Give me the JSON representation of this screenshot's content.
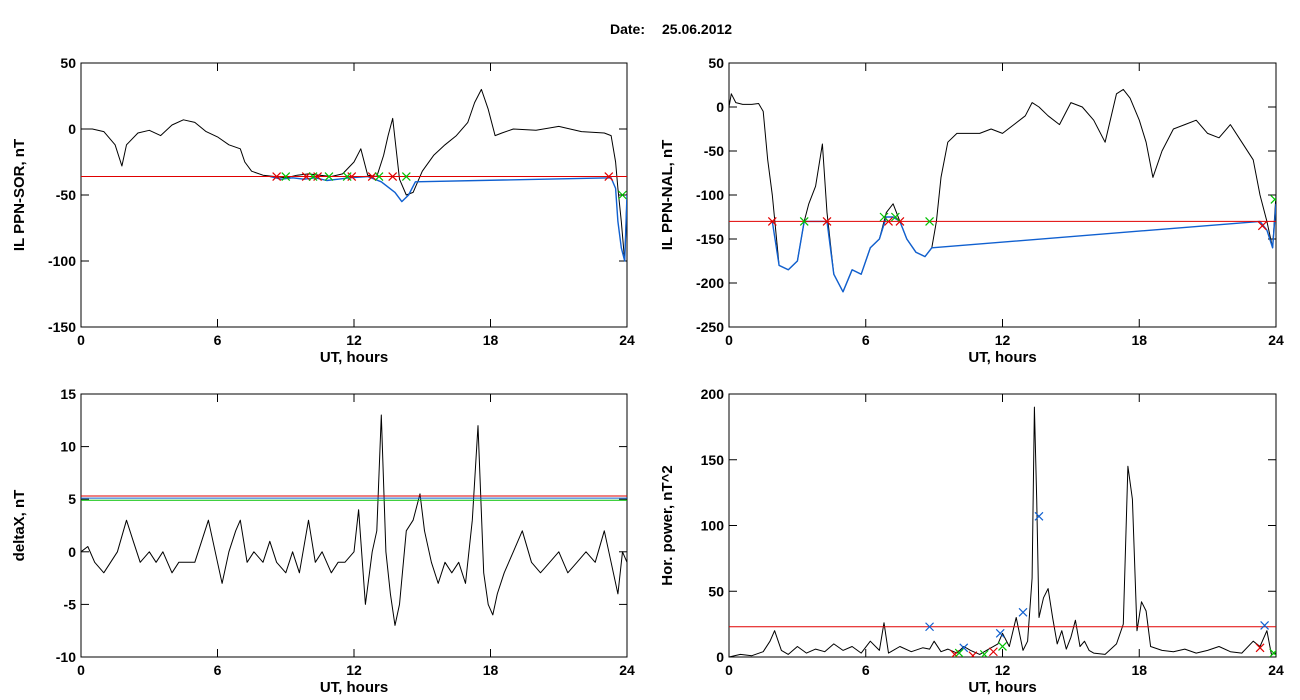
{
  "header": {
    "date_label": "Date:",
    "date_value": "25.06.2012"
  },
  "chart_data": [
    {
      "type": "line",
      "xlabel": "UT, hours",
      "ylabel": "IL PPN-SOR, nT",
      "xlim": [
        0,
        24
      ],
      "ylim": [
        -150,
        50
      ],
      "xticks": [
        0,
        6,
        12,
        18,
        24
      ],
      "yticks": [
        -150,
        -100,
        -50,
        0,
        50
      ],
      "threshold": {
        "value": -36,
        "color": "#e00000"
      },
      "series": [
        {
          "color": "#000000",
          "x": [
            0,
            0.5,
            1,
            1.5,
            1.8,
            2,
            2.5,
            3,
            3.5,
            4,
            4.5,
            5,
            5.5,
            6,
            6.5,
            7,
            7.2,
            7.5,
            8,
            8.5,
            9,
            9.5,
            10,
            10.5,
            11,
            11.5,
            12,
            12.3,
            12.6,
            13,
            13.3,
            13.5,
            13.7,
            14,
            14.3,
            14.6,
            15,
            15.5,
            16,
            16.5,
            17,
            17.3,
            17.6,
            17.9,
            18.2,
            18.5,
            19,
            20,
            21,
            22,
            23,
            23.3,
            23.5,
            23.6,
            23.75,
            23.9,
            24
          ],
          "y": [
            0,
            0,
            -2,
            -12,
            -28,
            -12,
            -3,
            -1,
            -5,
            3,
            7,
            5,
            -2,
            -6,
            -12,
            -15,
            -25,
            -32,
            -35,
            -36,
            -37,
            -35,
            -34,
            -35,
            -36,
            -34,
            -25,
            -15,
            -35,
            -36,
            -20,
            -5,
            8,
            -38,
            -50,
            -48,
            -32,
            -20,
            -12,
            -5,
            5,
            20,
            30,
            15,
            -5,
            -3,
            0,
            -1,
            2,
            -2,
            -3,
            -5,
            -25,
            -45,
            -70,
            -100,
            -50
          ]
        },
        {
          "color": "#1060d0",
          "x": [
            8.3,
            8.8,
            9.3,
            9.8,
            10.3,
            10.8,
            11.3,
            11.8,
            12.6,
            13.2,
            13.8,
            14.1,
            14.4,
            14.7,
            23.3,
            23.5,
            23.6,
            23.75,
            23.9,
            24
          ],
          "y": [
            -36,
            -38,
            -37,
            -38,
            -37,
            -39,
            -38,
            -37,
            -36,
            -40,
            -48,
            -55,
            -50,
            -40,
            -37,
            -45,
            -70,
            -90,
            -100,
            -50
          ]
        }
      ],
      "markers": [
        {
          "color": "#e00000",
          "x": [
            8.6,
            9.9,
            10.4,
            11.9,
            12.8,
            13.7,
            23.2
          ],
          "y": [
            -36,
            -36,
            -36,
            -36,
            -36,
            -36,
            -36
          ]
        },
        {
          "color": "#00c000",
          "x": [
            9.0,
            10.2,
            10.9,
            11.7,
            13.1,
            14.3,
            23.8
          ],
          "y": [
            -36,
            -36,
            -36,
            -36,
            -36,
            -36,
            -50
          ]
        }
      ]
    },
    {
      "type": "line",
      "xlabel": "UT, hours",
      "ylabel": "IL PPN-NAL, nT",
      "xlim": [
        0,
        24
      ],
      "ylim": [
        -250,
        50
      ],
      "xticks": [
        0,
        6,
        12,
        18,
        24
      ],
      "yticks": [
        -250,
        -200,
        -150,
        -100,
        -50,
        0,
        50
      ],
      "threshold": {
        "value": -130,
        "color": "#e00000"
      },
      "series": [
        {
          "color": "#000000",
          "x": [
            0,
            0.1,
            0.3,
            0.6,
            1,
            1.3,
            1.5,
            1.7,
            1.9,
            2.2,
            2.6,
            3,
            3.3,
            3.5,
            3.8,
            4.1,
            4.3,
            4.6,
            5,
            5.4,
            5.8,
            6.2,
            6.6,
            6.9,
            7.2,
            7.5,
            7.8,
            8.2,
            8.6,
            8.9,
            9.1,
            9.3,
            9.6,
            10,
            10.5,
            11,
            11.5,
            12,
            12.5,
            13,
            13.3,
            13.6,
            14,
            14.5,
            15,
            15.5,
            16,
            16.5,
            17,
            17.3,
            17.6,
            18,
            18.3,
            18.6,
            19,
            19.5,
            20,
            20.5,
            21,
            21.5,
            22,
            22.5,
            23,
            23.3,
            23.6,
            23.85,
            24
          ],
          "y": [
            0,
            15,
            5,
            3,
            3,
            4,
            -5,
            -60,
            -100,
            -180,
            -185,
            -175,
            -130,
            -110,
            -90,
            -42,
            -120,
            -190,
            -210,
            -185,
            -190,
            -160,
            -150,
            -120,
            -110,
            -130,
            -150,
            -165,
            -170,
            -160,
            -130,
            -80,
            -40,
            -30,
            -30,
            -30,
            -25,
            -30,
            -20,
            -10,
            5,
            0,
            -10,
            -20,
            5,
            0,
            -15,
            -40,
            15,
            20,
            10,
            -15,
            -40,
            -80,
            -50,
            -25,
            -20,
            -15,
            -30,
            -35,
            -20,
            -40,
            -60,
            -100,
            -130,
            -160,
            -100
          ]
        },
        {
          "color": "#1060d0",
          "x": [
            1.9,
            2.2,
            2.6,
            3,
            3.3,
            3.5,
            4.3,
            4.6,
            5,
            5.4,
            5.8,
            6.2,
            6.6,
            6.9,
            7.2,
            7.5,
            7.8,
            8.2,
            8.6,
            8.9,
            23.3,
            23.6,
            23.85,
            24
          ],
          "y": [
            -130,
            -180,
            -185,
            -175,
            -130,
            -130,
            -130,
            -190,
            -210,
            -185,
            -190,
            -160,
            -150,
            -125,
            -125,
            -130,
            -150,
            -165,
            -170,
            -160,
            -130,
            -140,
            -160,
            -110
          ]
        }
      ],
      "markers": [
        {
          "color": "#e00000",
          "x": [
            1.9,
            4.3,
            7.0,
            7.5,
            23.4
          ],
          "y": [
            -130,
            -130,
            -130,
            -130,
            -135
          ]
        },
        {
          "color": "#00c000",
          "x": [
            3.3,
            6.8,
            7.3,
            8.8,
            23.95
          ],
          "y": [
            -130,
            -125,
            -125,
            -130,
            -105
          ]
        }
      ]
    },
    {
      "type": "line",
      "xlabel": "UT, hours",
      "ylabel": "deltaX, nT",
      "xlim": [
        0,
        24
      ],
      "ylim": [
        -10,
        15
      ],
      "xticks": [
        0,
        6,
        12,
        18,
        24
      ],
      "yticks": [
        -10,
        -5,
        0,
        5,
        10,
        15
      ],
      "thresholds": [
        {
          "value": 5.3,
          "color": "#e00000"
        },
        {
          "value": 5.1,
          "color": "#1060d0"
        },
        {
          "value": 4.9,
          "color": "#00c000"
        }
      ],
      "series": [
        {
          "color": "#000000",
          "x": [
            0,
            0.3,
            0.6,
            1,
            1.3,
            1.6,
            2,
            2.3,
            2.6,
            3,
            3.3,
            3.6,
            4,
            4.3,
            4.6,
            5,
            5.3,
            5.6,
            6,
            6.2,
            6.5,
            6.8,
            7,
            7.3,
            7.6,
            8,
            8.3,
            8.6,
            9,
            9.3,
            9.6,
            10,
            10.3,
            10.6,
            11,
            11.3,
            11.6,
            12,
            12.2,
            12.5,
            12.8,
            13,
            13.2,
            13.4,
            13.6,
            13.8,
            14,
            14.3,
            14.6,
            14.9,
            15.1,
            15.4,
            15.7,
            16,
            16.3,
            16.6,
            16.9,
            17.2,
            17.45,
            17.7,
            17.9,
            18.1,
            18.3,
            18.6,
            19,
            19.4,
            19.8,
            20.2,
            20.6,
            21,
            21.4,
            21.8,
            22.2,
            22.6,
            23,
            23.3,
            23.6,
            23.8,
            24
          ],
          "y": [
            0,
            0.5,
            -1,
            -2,
            -1,
            0,
            3,
            1,
            -1,
            0,
            -1,
            0,
            -2,
            -1,
            -1,
            -1,
            1,
            3,
            -1,
            -3,
            0,
            2,
            3,
            -1,
            0,
            -1,
            1,
            -1,
            -2,
            0,
            -2,
            3,
            -1,
            0,
            -2,
            -1,
            -1,
            0,
            4,
            -5,
            0,
            2,
            13,
            0,
            -4,
            -7,
            -5,
            2,
            3,
            5.5,
            2,
            -1,
            -3,
            -1,
            -2,
            -1,
            -3,
            3,
            12,
            -2,
            -5,
            -6,
            -4,
            -2,
            0,
            2,
            -1,
            -2,
            -1,
            0,
            -2,
            -1,
            0,
            -1,
            2,
            -1,
            -4,
            0,
            -1
          ]
        }
      ]
    },
    {
      "type": "line",
      "xlabel": "UT, hours",
      "ylabel": "Hor. power, nT^2",
      "xlim": [
        0,
        24
      ],
      "ylim": [
        0,
        200
      ],
      "xticks": [
        0,
        6,
        12,
        18,
        24
      ],
      "yticks": [
        0,
        50,
        100,
        150,
        200
      ],
      "threshold": {
        "value": 23,
        "color": "#e00000"
      },
      "series": [
        {
          "color": "#000000",
          "x": [
            0,
            0.5,
            1,
            1.5,
            1.8,
            2,
            2.3,
            2.6,
            3,
            3.4,
            3.8,
            4.2,
            4.6,
            5,
            5.4,
            5.8,
            6.2,
            6.6,
            6.8,
            7,
            7.2,
            7.5,
            8,
            8.5,
            8.8,
            9,
            9.3,
            9.6,
            10,
            10.3,
            10.6,
            11,
            11.4,
            11.8,
            12,
            12.3,
            12.6,
            12.9,
            13.1,
            13.3,
            13.4,
            13.5,
            13.6,
            13.8,
            14,
            14.2,
            14.4,
            14.6,
            14.8,
            15,
            15.2,
            15.4,
            15.6,
            15.8,
            16,
            16.5,
            17,
            17.3,
            17.5,
            17.7,
            17.9,
            18.1,
            18.3,
            18.5,
            19,
            19.5,
            20,
            20.5,
            21,
            21.5,
            22,
            22.5,
            23,
            23.3,
            23.6,
            23.8,
            24
          ],
          "y": [
            0,
            2,
            1,
            4,
            12,
            20,
            5,
            2,
            8,
            3,
            6,
            4,
            10,
            5,
            8,
            3,
            12,
            5,
            26,
            3,
            5,
            8,
            4,
            7,
            6,
            12,
            4,
            6,
            3,
            8,
            5,
            2,
            6,
            10,
            18,
            8,
            30,
            5,
            12,
            60,
            190,
            120,
            30,
            45,
            52,
            30,
            10,
            20,
            6,
            15,
            28,
            8,
            12,
            5,
            3,
            2,
            10,
            25,
            145,
            120,
            20,
            42,
            35,
            8,
            5,
            4,
            6,
            3,
            5,
            8,
            4,
            3,
            12,
            8,
            20,
            2,
            3
          ]
        }
      ],
      "markers": [
        {
          "color": "#1060d0",
          "x": [
            8.8,
            10.3,
            11.9,
            12.9,
            13.6,
            23.5
          ],
          "y": [
            23,
            7,
            18,
            34,
            107,
            24
          ]
        },
        {
          "color": "#e00000",
          "x": [
            9.9,
            10.7,
            11.6,
            23.3
          ],
          "y": [
            2,
            1,
            4,
            7
          ]
        },
        {
          "color": "#00c000",
          "x": [
            10.1,
            11.2,
            12.0,
            23.9
          ],
          "y": [
            3,
            2,
            8,
            3
          ]
        }
      ]
    }
  ]
}
